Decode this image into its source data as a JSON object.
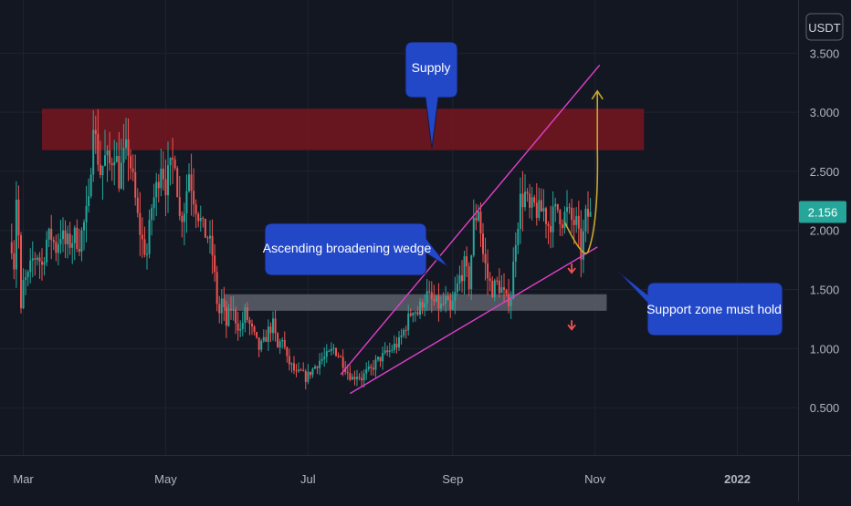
{
  "chart_data": {
    "type": "candlestick",
    "currency_badge": "USDT",
    "last_price_label": "2.156",
    "colors": {
      "background": "#131722",
      "up": "#26a69a",
      "down": "#ef5350",
      "wedge_lines": "#e040c8",
      "supply_zone": "#7a1620",
      "support_zone": "#5d606b",
      "callout": "#2248c8",
      "projection": "#c9a82a",
      "price_badge": "#26a69a"
    },
    "y_ticks": [
      "3.500",
      "3.000",
      "2.500",
      "2.000",
      "1.500",
      "1.000",
      "0.500"
    ],
    "y_tick_values": [
      3.5,
      3.0,
      2.5,
      2.0,
      1.5,
      1.0,
      0.5
    ],
    "ylim": [
      0.1,
      3.95
    ],
    "x_ticks": [
      {
        "label": "Mar",
        "day": 5,
        "bold": false
      },
      {
        "label": "May",
        "day": 66,
        "bold": false
      },
      {
        "label": "Jul",
        "day": 127,
        "bold": false
      },
      {
        "label": "Sep",
        "day": 189,
        "bold": false
      },
      {
        "label": "Nov",
        "day": 250,
        "bold": false
      },
      {
        "label": "2022",
        "day": 311,
        "bold": true
      }
    ],
    "xlim": [
      -5,
      337
    ],
    "close_path": [
      [
        0,
        1.9
      ],
      [
        1,
        1.72
      ],
      [
        2,
        2.3
      ],
      [
        3,
        1.95
      ],
      [
        4,
        1.3
      ],
      [
        5,
        1.55
      ],
      [
        7,
        1.6
      ],
      [
        9,
        1.75
      ],
      [
        11,
        1.8
      ],
      [
        13,
        1.7
      ],
      [
        15,
        1.92
      ],
      [
        17,
        1.95
      ],
      [
        19,
        1.85
      ],
      [
        21,
        1.98
      ],
      [
        23,
        1.88
      ],
      [
        25,
        1.9
      ],
      [
        27,
        1.95
      ],
      [
        29,
        1.9
      ],
      [
        31,
        2.05
      ],
      [
        33,
        2.2
      ],
      [
        34,
        2.6
      ],
      [
        35,
        3.0
      ],
      [
        36,
        2.75
      ],
      [
        38,
        2.5
      ],
      [
        40,
        2.6
      ],
      [
        42,
        2.55
      ],
      [
        44,
        2.7
      ],
      [
        46,
        2.45
      ],
      [
        48,
        2.6
      ],
      [
        50,
        2.7
      ],
      [
        52,
        2.4
      ],
      [
        54,
        2.1
      ],
      [
        56,
        1.9
      ],
      [
        58,
        1.8
      ],
      [
        60,
        2.2
      ],
      [
        62,
        2.35
      ],
      [
        64,
        2.6
      ],
      [
        66,
        2.4
      ],
      [
        68,
        2.5
      ],
      [
        70,
        2.65
      ],
      [
        72,
        2.1
      ],
      [
        74,
        2.2
      ],
      [
        76,
        2.5
      ],
      [
        78,
        2.3
      ],
      [
        80,
        2.15
      ],
      [
        82,
        2.0
      ],
      [
        84,
        1.95
      ],
      [
        86,
        1.8
      ],
      [
        88,
        1.4
      ],
      [
        89,
        1.3
      ],
      [
        90,
        1.4
      ],
      [
        92,
        1.2
      ],
      [
        94,
        1.35
      ],
      [
        96,
        1.25
      ],
      [
        98,
        1.15
      ],
      [
        100,
        1.3
      ],
      [
        102,
        1.2
      ],
      [
        104,
        1.1
      ],
      [
        106,
        1.0
      ],
      [
        108,
        1.05
      ],
      [
        110,
        1.15
      ],
      [
        112,
        1.2
      ],
      [
        114,
        1.0
      ],
      [
        116,
        1.1
      ],
      [
        118,
        0.9
      ],
      [
        120,
        0.85
      ],
      [
        122,
        0.78
      ],
      [
        124,
        0.8
      ],
      [
        126,
        0.75
      ],
      [
        128,
        0.8
      ],
      [
        130,
        0.85
      ],
      [
        132,
        0.9
      ],
      [
        134,
        0.92
      ],
      [
        136,
        0.95
      ],
      [
        138,
        1.0
      ],
      [
        140,
        0.95
      ],
      [
        142,
        0.88
      ],
      [
        144,
        0.8
      ],
      [
        146,
        0.75
      ],
      [
        148,
        0.78
      ],
      [
        150,
        0.75
      ],
      [
        152,
        0.8
      ],
      [
        154,
        0.82
      ],
      [
        156,
        0.88
      ],
      [
        158,
        0.92
      ],
      [
        160,
        0.95
      ],
      [
        162,
        0.98
      ],
      [
        164,
        1.02
      ],
      [
        166,
        1.05
      ],
      [
        168,
        1.15
      ],
      [
        170,
        1.25
      ],
      [
        172,
        1.35
      ],
      [
        174,
        1.3
      ],
      [
        176,
        1.4
      ],
      [
        178,
        1.45
      ],
      [
        180,
        1.4
      ],
      [
        182,
        1.38
      ],
      [
        184,
        1.35
      ],
      [
        186,
        1.4
      ],
      [
        188,
        1.3
      ],
      [
        190,
        1.45
      ],
      [
        192,
        1.6
      ],
      [
        194,
        1.7
      ],
      [
        196,
        1.55
      ],
      [
        198,
        2.05
      ],
      [
        200,
        2.2
      ],
      [
        202,
        1.8
      ],
      [
        204,
        1.6
      ],
      [
        206,
        1.5
      ],
      [
        208,
        1.55
      ],
      [
        210,
        1.5
      ],
      [
        212,
        1.4
      ],
      [
        214,
        1.45
      ],
      [
        216,
        1.95
      ],
      [
        218,
        2.25
      ],
      [
        220,
        2.3
      ],
      [
        222,
        2.15
      ],
      [
        224,
        2.2
      ],
      [
        226,
        2.15
      ],
      [
        228,
        2.18
      ],
      [
        230,
        2.05
      ],
      [
        232,
        2.12
      ],
      [
        234,
        2.18
      ],
      [
        236,
        2.1
      ],
      [
        238,
        2.15
      ],
      [
        240,
        2.08
      ],
      [
        242,
        2.05
      ],
      [
        244,
        1.8
      ],
      [
        246,
        2.1
      ],
      [
        248,
        2.156
      ]
    ],
    "zones": [
      {
        "name": "supply-zone",
        "day_start": 13,
        "day_end": 271,
        "price_low": 2.68,
        "price_high": 3.03
      },
      {
        "name": "support-zone",
        "day_start": 91,
        "day_end": 255,
        "price_low": 1.32,
        "price_high": 1.46
      }
    ],
    "wedge_lines": [
      {
        "name": "wedge-upper-line",
        "points": [
          [
            141,
            0.78
          ],
          [
            252,
            3.4
          ]
        ]
      },
      {
        "name": "wedge-lower-line",
        "points": [
          [
            145,
            0.62
          ],
          [
            251,
            1.86
          ]
        ]
      }
    ],
    "projection_path": [
      [
        237,
        2.07
      ],
      [
        245,
        1.9
      ],
      [
        247,
        1.82
      ],
      [
        250,
        2.1
      ],
      [
        251,
        2.7
      ],
      [
        251,
        3.18
      ]
    ],
    "down_arrows": [
      {
        "name": "down-arrow-upper",
        "day": 240,
        "price": 1.65
      },
      {
        "name": "down-arrow-lower",
        "day": 240,
        "price": 1.17
      }
    ],
    "annotations": {
      "supply": "Supply",
      "wedge": "Ascending broadening wedge",
      "support": "Support zone must hold"
    }
  }
}
